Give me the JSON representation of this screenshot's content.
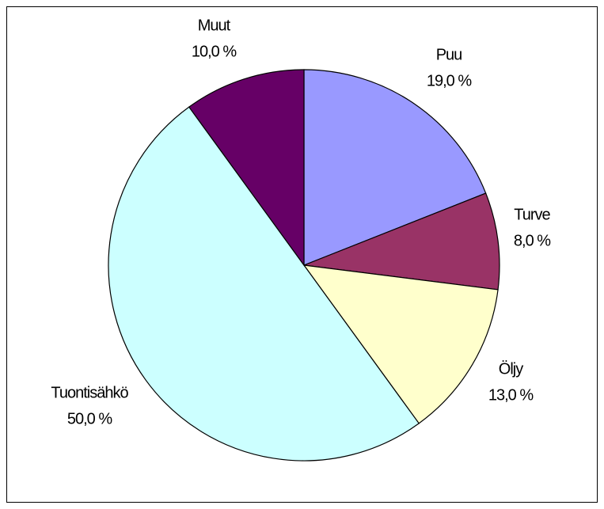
{
  "chart_data": {
    "type": "pie",
    "categories": [
      "Puu",
      "Turve",
      "Öljy",
      "Tuontisähkö",
      "Muut"
    ],
    "values": [
      19,
      8,
      13,
      50,
      10
    ],
    "value_labels": [
      "19,0 %",
      "8,0 %",
      "13,0 %",
      "50,0 %",
      "10,0 %"
    ],
    "colors": [
      "#9999ff",
      "#993366",
      "#ffffcc",
      "#ccffff",
      "#660066"
    ]
  }
}
